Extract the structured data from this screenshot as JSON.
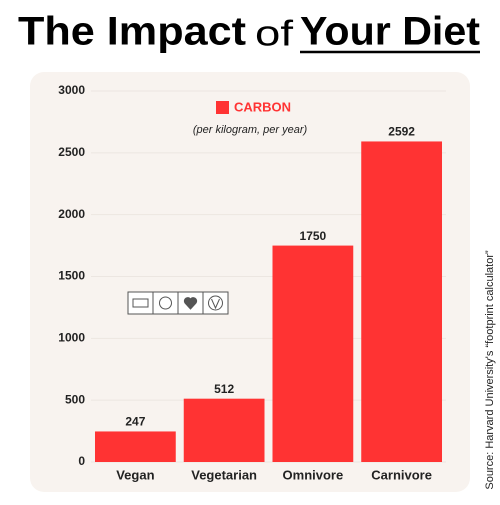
{
  "chart_data": {
    "type": "bar",
    "title": [
      "The Impact",
      "of",
      "Your Diet"
    ],
    "subtitle": "(per kilogram, per year)",
    "source": "Source: Harvard University's “footprint calculator”",
    "categories": [
      "Vegan",
      "Vegetarian",
      "Omnivore",
      "Carnivore"
    ],
    "series": [
      {
        "name": "CARBON",
        "color": "#ff3333",
        "values": [
          247,
          512,
          1750,
          2592
        ]
      }
    ],
    "ylim": [
      0,
      3000
    ],
    "yticks": [
      0,
      500,
      1000,
      1500,
      2000,
      2500,
      3000
    ],
    "grid": true
  }
}
